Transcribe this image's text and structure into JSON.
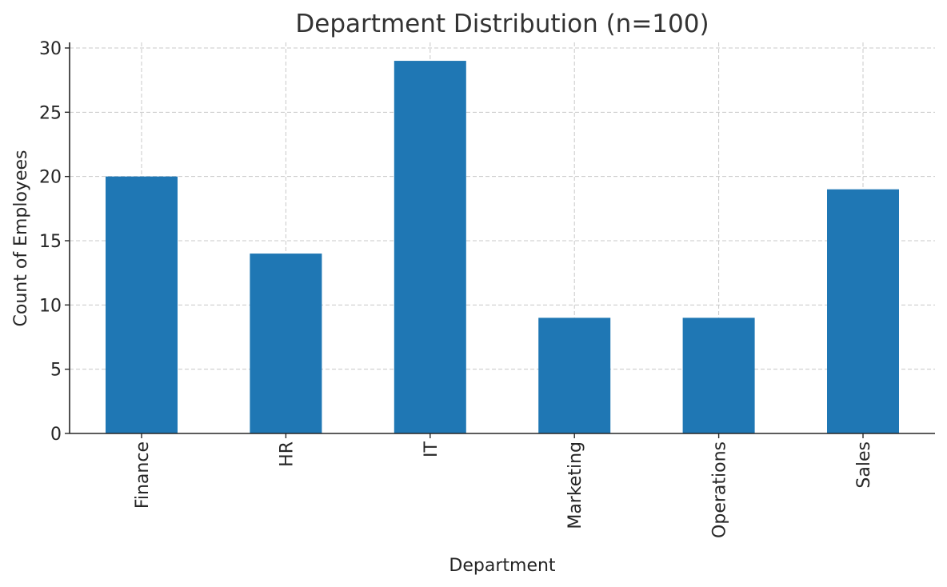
{
  "chart_data": {
    "type": "bar",
    "title": "Department Distribution (n=100)",
    "xlabel": "Department",
    "ylabel": "Count of Employees",
    "categories": [
      "Finance",
      "HR",
      "IT",
      "Marketing",
      "Operations",
      "Sales"
    ],
    "values": [
      20,
      14,
      29,
      9,
      9,
      19
    ],
    "ylim": [
      0,
      30
    ],
    "yticks": [
      0,
      5,
      10,
      15,
      20,
      25,
      30
    ],
    "grid": true,
    "xtick_rotation": "vertical",
    "bar_color": "#1f77b4"
  }
}
